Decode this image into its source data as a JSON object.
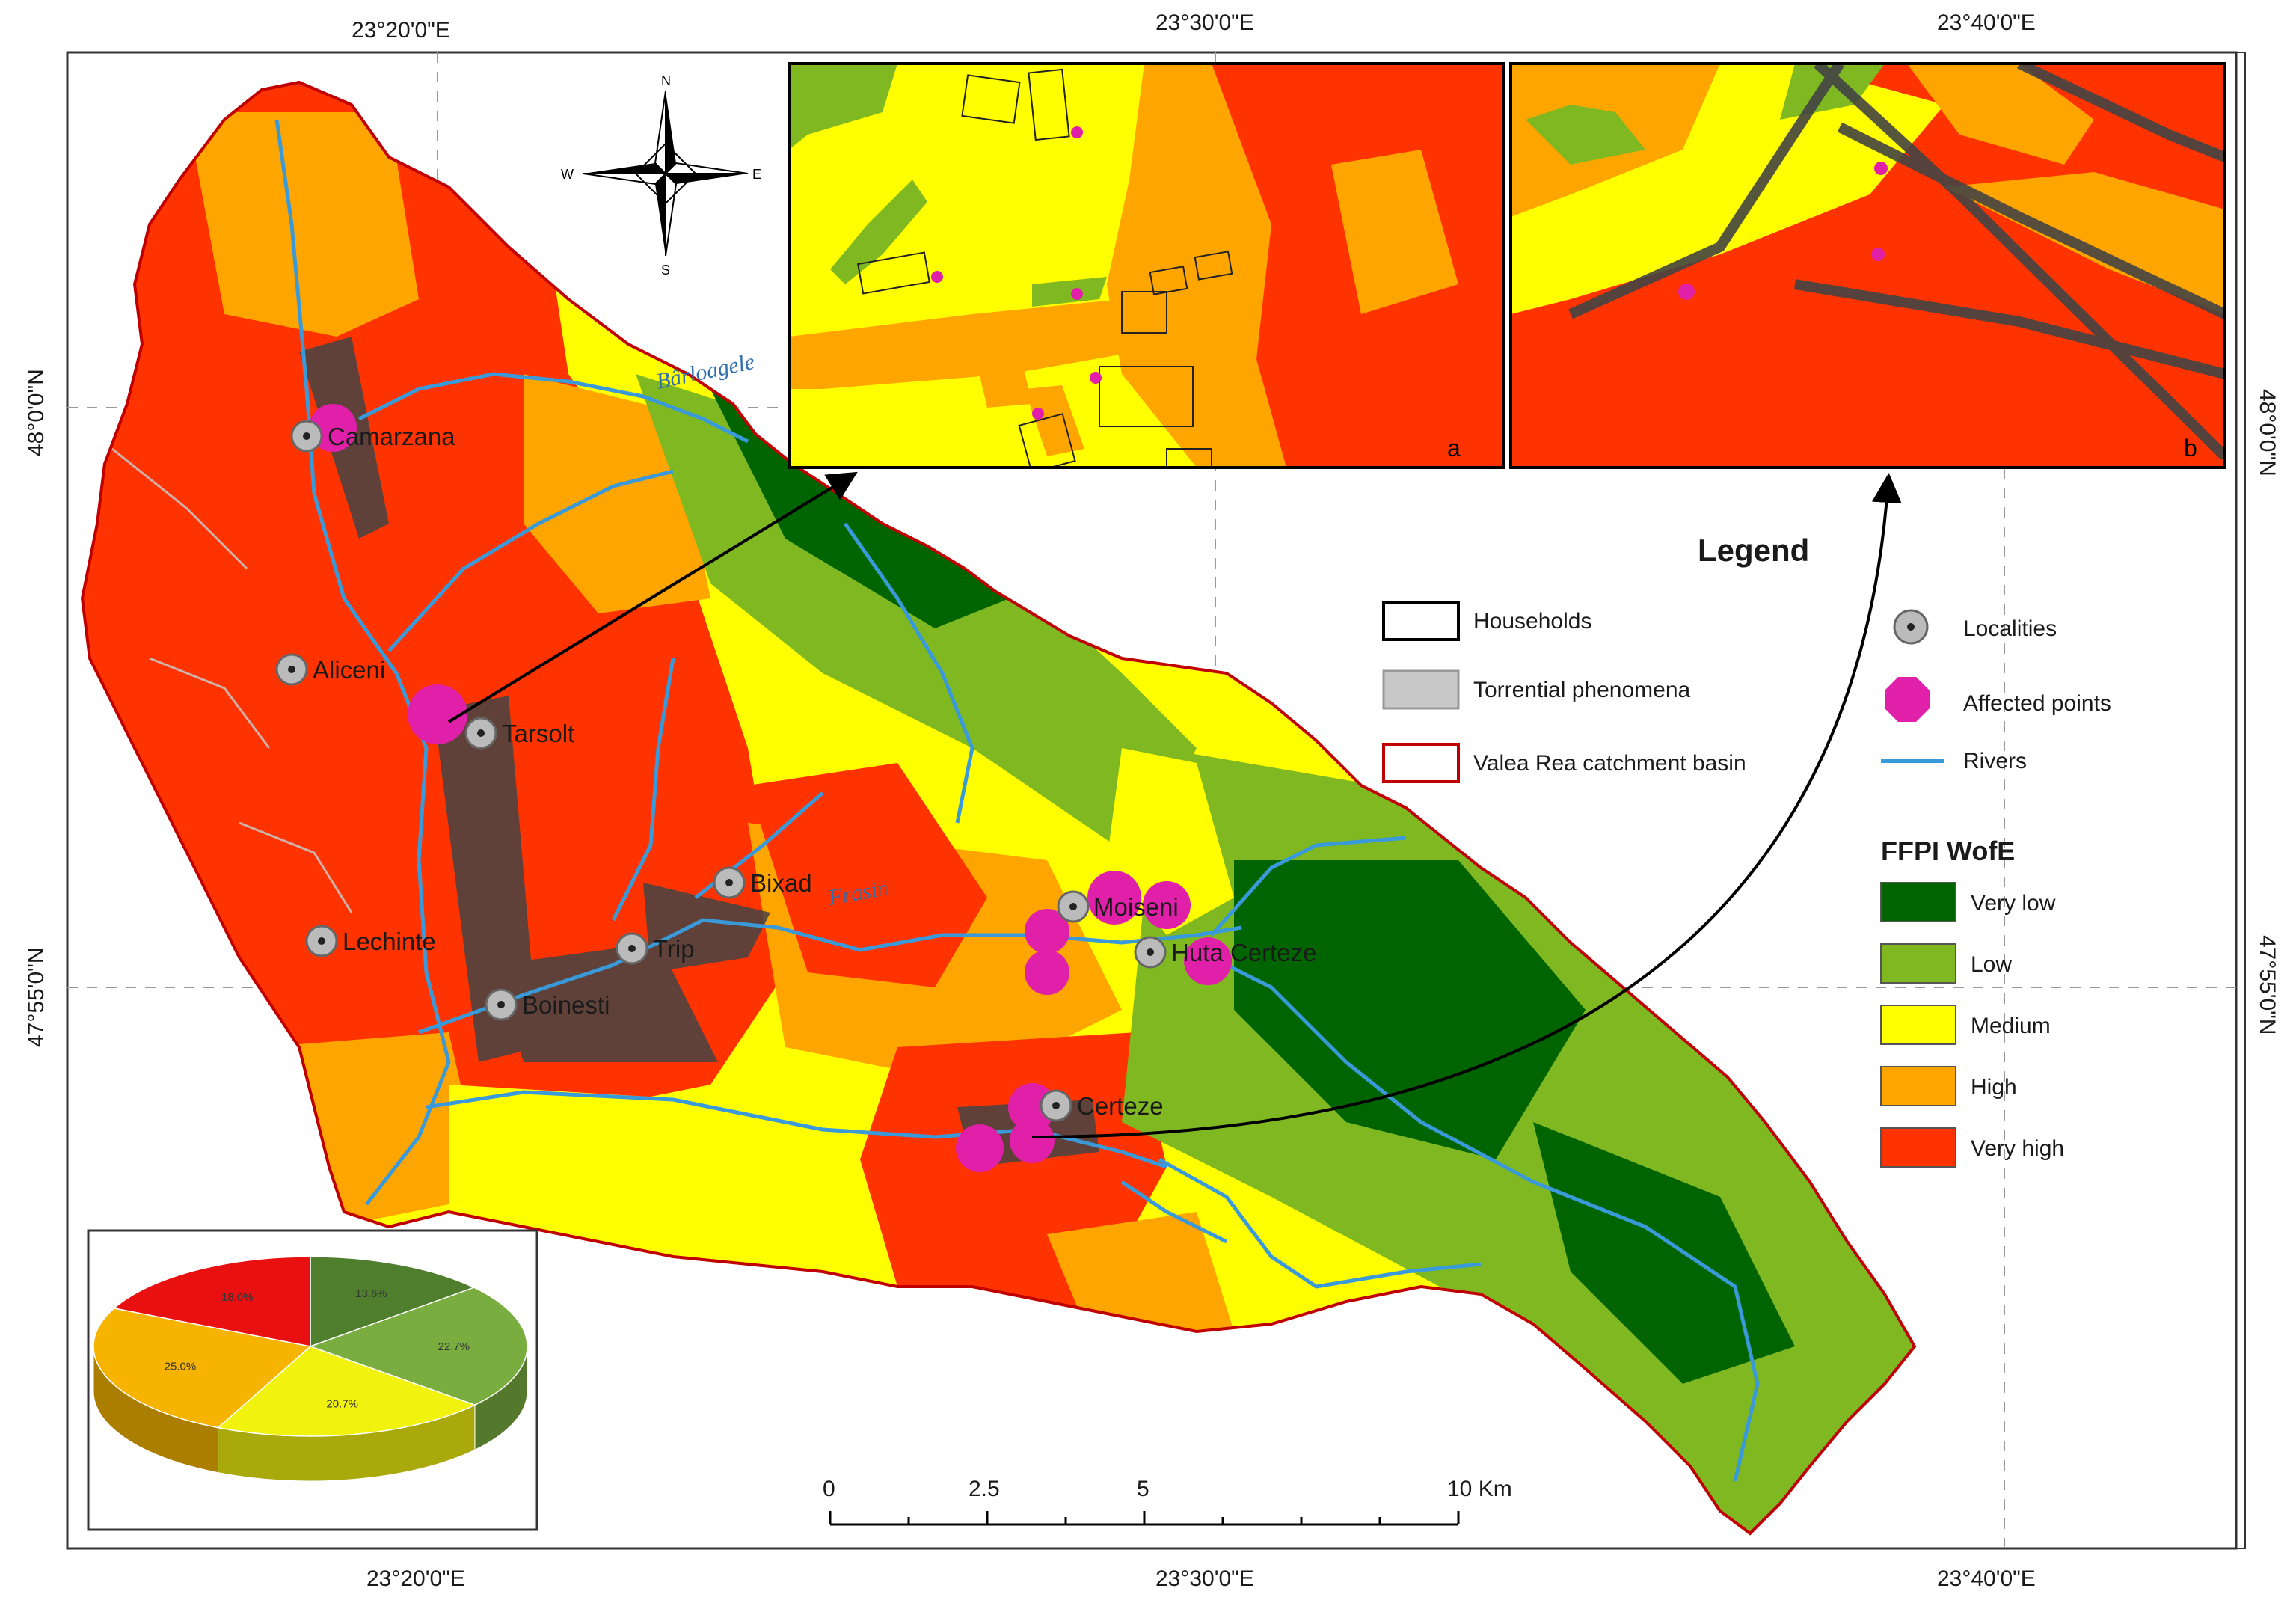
{
  "coords": {
    "top": [
      "23°20'0\"E",
      "23°30'0\"E",
      "23°40'0\"E"
    ],
    "bottom": [
      "23°20'0\"E",
      "23°30'0\"E",
      "23°40'0\"E"
    ],
    "left": [
      "48°0'0\"N",
      "47°55'0\"N"
    ],
    "right": [
      "48°0'0\"N",
      "47°55'0\"N"
    ]
  },
  "compass": {
    "n": "N",
    "s": "S",
    "e": "E",
    "w": "W"
  },
  "rivers": {
    "barloagele": "Bârloagele",
    "trasa": "Frasin"
  },
  "localities": [
    {
      "name": "Camarzana"
    },
    {
      "name": "Aliceni"
    },
    {
      "name": "Tarsolt"
    },
    {
      "name": "Bixad"
    },
    {
      "name": "Lechinte"
    },
    {
      "name": "Trip"
    },
    {
      "name": "Boinesti"
    },
    {
      "name": "Moiseni"
    },
    {
      "name": "Huta Certeze"
    },
    {
      "name": "Certeze"
    }
  ],
  "insets": {
    "a": "a",
    "b": "b"
  },
  "legend": {
    "title": "Legend",
    "households": "Households",
    "torrential": "Torrential phenomena",
    "basin": "Valea Rea catchment basin",
    "localities": "Localities",
    "affected": "Affected points",
    "rivers": "Rivers",
    "ffpi_title": "FFPI WofE",
    "classes": [
      {
        "label": "Very low",
        "color": "#006400"
      },
      {
        "label": "Low",
        "color": "#7fb821"
      },
      {
        "label": "Medium",
        "color": "#ffff00"
      },
      {
        "label": "High",
        "color": "#ffa500"
      },
      {
        "label": "Very high",
        "color": "#ff3300"
      }
    ]
  },
  "scale": {
    "labels": [
      "0",
      "2.5",
      "5",
      "10 Km"
    ]
  },
  "chart_data": {
    "type": "pie",
    "slices": [
      {
        "label": "13.6%",
        "value": 13.6,
        "color": "#4f7f2c"
      },
      {
        "label": "22.7%",
        "value": 22.7,
        "color": "#7aad3f"
      },
      {
        "label": "20.7%",
        "value": 20.7,
        "color": "#f2f20f"
      },
      {
        "label": "25.0%",
        "value": 25.0,
        "color": "#f6b400"
      },
      {
        "label": "18.0%",
        "value": 18.0,
        "color": "#e81010"
      }
    ]
  },
  "colors": {
    "very_low": "#006400",
    "low": "#7fb821",
    "medium": "#ffff00",
    "high": "#ffa500",
    "very_high": "#ff3300",
    "river": "#3a9ad9",
    "affected": "#e020a8",
    "basin_outline": "#c00000"
  }
}
